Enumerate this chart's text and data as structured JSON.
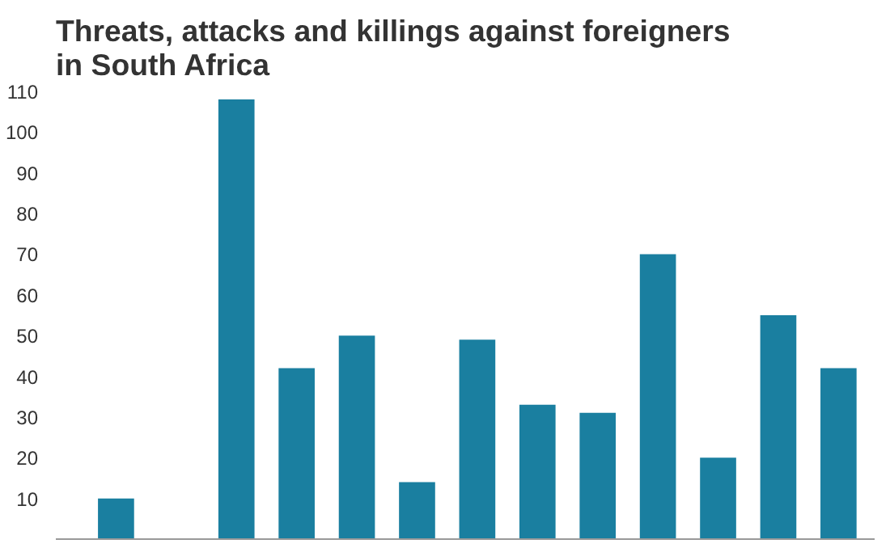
{
  "chart_data": {
    "type": "bar",
    "title": "Threats, attacks and killings against foreigners in South Africa",
    "categories": [
      null,
      null,
      null,
      null,
      null,
      null,
      null,
      null,
      null,
      null,
      null,
      null,
      null
    ],
    "values": [
      10,
      0,
      108,
      42,
      50,
      14,
      49,
      33,
      31,
      70,
      20,
      55,
      42
    ],
    "color": "#1a7fa0",
    "ylim": [
      0,
      110
    ],
    "yticks": [
      10,
      20,
      30,
      40,
      50,
      60,
      70,
      80,
      90,
      100,
      110
    ],
    "grid": false
  }
}
